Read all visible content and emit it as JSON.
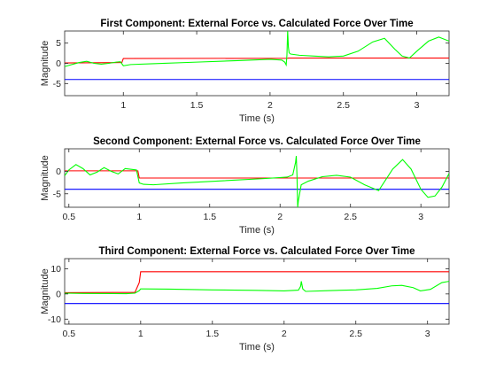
{
  "chart_data": [
    {
      "type": "line",
      "title": "First Component: External Force vs. Calculated Force Over Time",
      "xlabel": "Time (s)",
      "ylabel": "Magnitude",
      "xlim": [
        0.6,
        3.22
      ],
      "ylim": [
        -8,
        8
      ],
      "xticks": [
        1,
        1.5,
        2,
        2.5,
        3
      ],
      "xtick_labels": [
        "1",
        "1.5",
        "2",
        "2.5",
        "3"
      ],
      "yticks": [
        -5,
        0,
        5
      ],
      "ytick_labels": [
        "-5",
        "0",
        "5"
      ],
      "grid": false,
      "series": [
        {
          "color": "#0000ff",
          "x": [
            0.6,
            3.22
          ],
          "y": [
            -4,
            -4
          ]
        },
        {
          "color": "#ff0000",
          "x": [
            0.6,
            0.99,
            1.0,
            2.12,
            2.125,
            3.22
          ],
          "y": [
            0.1,
            0.2,
            1.2,
            1.25,
            1.3,
            1.3
          ]
        },
        {
          "color": "#00ff00",
          "x": [
            0.6,
            0.63,
            0.7,
            0.75,
            0.8,
            0.85,
            0.9,
            0.95,
            0.98,
            1.0,
            1.05,
            1.2,
            1.5,
            1.8,
            2.0,
            2.08,
            2.1,
            2.11,
            2.115,
            2.12,
            2.125,
            2.13,
            2.14,
            2.2,
            2.3,
            2.4,
            2.5,
            2.6,
            2.7,
            2.78,
            2.85,
            2.9,
            2.95,
            3.0,
            3.08,
            3.15,
            3.22
          ],
          "y": [
            -0.8,
            -0.5,
            0.2,
            0.5,
            0.0,
            -0.2,
            0.0,
            0.3,
            0.4,
            -0.6,
            -0.3,
            -0.1,
            0.3,
            0.7,
            1.0,
            0.8,
            0.3,
            -0.4,
            2.0,
            8.0,
            4.0,
            2.6,
            2.3,
            2.0,
            1.8,
            1.6,
            1.8,
            3.0,
            5.3,
            6.2,
            3.5,
            1.8,
            1.3,
            3.0,
            5.5,
            6.5,
            5.5
          ]
        }
      ]
    },
    {
      "type": "line",
      "title": "Second Component: External Force vs. Calculated Force Over Time",
      "xlabel": "Time (s)",
      "ylabel": "Magnitude",
      "xlim": [
        0.47,
        3.2
      ],
      "ylim": [
        -8,
        5
      ],
      "xticks": [
        0.5,
        1,
        1.5,
        2,
        2.5,
        3
      ],
      "xtick_labels": [
        "0.5",
        "1",
        "1.5",
        "2",
        "2.5",
        "3"
      ],
      "yticks": [
        -5,
        0
      ],
      "ytick_labels": [
        "-5",
        "0"
      ],
      "grid": false,
      "series": [
        {
          "color": "#0000ff",
          "x": [
            0.47,
            3.2
          ],
          "y": [
            -4,
            -4
          ]
        },
        {
          "color": "#ff0000",
          "x": [
            0.47,
            0.99,
            1.0,
            3.2
          ],
          "y": [
            0.1,
            0.1,
            -1.5,
            -1.5
          ]
        },
        {
          "color": "#00ff00",
          "x": [
            0.47,
            0.5,
            0.55,
            0.6,
            0.65,
            0.7,
            0.75,
            0.8,
            0.85,
            0.9,
            0.95,
            0.98,
            1.0,
            1.03,
            1.1,
            1.3,
            1.6,
            1.9,
            2.05,
            2.09,
            2.11,
            2.115,
            2.12,
            2.125,
            2.13,
            2.15,
            2.2,
            2.3,
            2.4,
            2.5,
            2.6,
            2.7,
            2.8,
            2.87,
            2.93,
            3.0,
            3.05,
            3.1,
            3.15,
            3.2
          ],
          "y": [
            -1.0,
            0.3,
            1.5,
            0.6,
            -0.8,
            -0.2,
            0.8,
            0.0,
            -0.6,
            0.6,
            0.4,
            0.3,
            -2.6,
            -2.9,
            -3.0,
            -2.6,
            -2.1,
            -1.6,
            -1.3,
            -0.8,
            2.0,
            3.4,
            -1.0,
            -8.0,
            -6.5,
            -3.0,
            -2.2,
            -1.2,
            -0.9,
            -1.3,
            -3.0,
            -4.3,
            0.5,
            2.6,
            0.5,
            -4.0,
            -5.8,
            -5.5,
            -3.5,
            -0.5
          ]
        }
      ]
    },
    {
      "type": "line",
      "title": "Third Component: External Force vs. Calculated Force Over Time",
      "xlabel": "Time (s)",
      "ylabel": "Magnitude",
      "xlim": [
        0.47,
        3.15
      ],
      "ylim": [
        -12,
        14
      ],
      "xticks": [
        0.5,
        1,
        1.5,
        2,
        2.5,
        3
      ],
      "xtick_labels": [
        "0.5",
        "1",
        "1.5",
        "2",
        "2.5",
        "3"
      ],
      "yticks": [
        -10,
        0,
        10
      ],
      "ytick_labels": [
        "-10",
        "0",
        "10"
      ],
      "grid": false,
      "series": [
        {
          "color": "#0000ff",
          "x": [
            0.47,
            3.15
          ],
          "y": [
            -3.8,
            -3.8
          ]
        },
        {
          "color": "#ff0000",
          "x": [
            0.47,
            0.96,
            0.99,
            1.0,
            3.15
          ],
          "y": [
            0.5,
            0.6,
            4.5,
            8.8,
            8.8
          ]
        },
        {
          "color": "#00ff00",
          "x": [
            0.47,
            0.6,
            0.9,
            0.96,
            0.99,
            1.0,
            1.02,
            1.2,
            1.5,
            1.8,
            2.0,
            2.1,
            2.115,
            2.12,
            2.13,
            2.15,
            2.3,
            2.5,
            2.65,
            2.75,
            2.82,
            2.9,
            2.95,
            3.02,
            3.1,
            3.15
          ],
          "y": [
            0.3,
            0.2,
            0.1,
            0.3,
            1.3,
            2.0,
            2.0,
            1.9,
            1.6,
            1.4,
            1.2,
            1.5,
            3.0,
            5.0,
            2.0,
            1.0,
            1.3,
            1.6,
            2.2,
            3.2,
            3.4,
            2.5,
            1.2,
            1.8,
            4.5,
            5.0
          ]
        }
      ]
    }
  ]
}
